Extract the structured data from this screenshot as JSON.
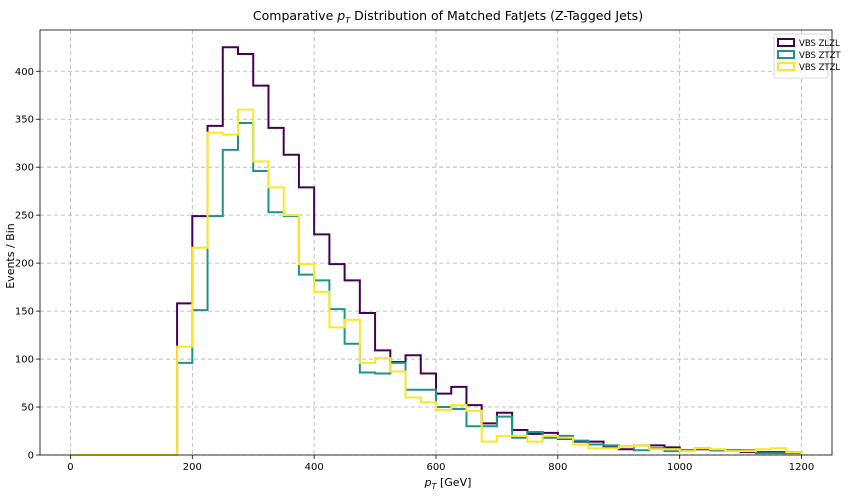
{
  "chart_data": {
    "type": "histogram",
    "title_prefix": "Comparative ",
    "title_var": "p",
    "title_sub": "T",
    "title_suffix": " Distribution of Matched FatJets (Z-Tagged Jets)",
    "xlabel_var": "p",
    "xlabel_sub": "T",
    "xlabel_suffix": " [GeV]",
    "ylabel": "Events / Bin",
    "xlim": [
      -50,
      1250
    ],
    "ylim": [
      0,
      443
    ],
    "xticks": [
      0,
      200,
      400,
      600,
      800,
      1000,
      1200
    ],
    "yticks": [
      0,
      50,
      100,
      150,
      200,
      250,
      300,
      350,
      400
    ],
    "grid": true,
    "legend_position": "top-right",
    "bin_edges": [
      0,
      25,
      50,
      75,
      100,
      125,
      150,
      175,
      200,
      225,
      250,
      275,
      300,
      325,
      350,
      375,
      400,
      425,
      450,
      475,
      500,
      525,
      550,
      575,
      600,
      625,
      650,
      675,
      700,
      725,
      750,
      775,
      800,
      825,
      850,
      875,
      900,
      925,
      950,
      975,
      1000,
      1025,
      1050,
      1075,
      1100,
      1125,
      1150,
      1175,
      1200
    ],
    "series": [
      {
        "name": "VBS ZLZL",
        "color": "#440154",
        "values": [
          0,
          0,
          0,
          0,
          0,
          0,
          0,
          158,
          249,
          343,
          425,
          418,
          385,
          341,
          313,
          279,
          230,
          199,
          182,
          148,
          109,
          97,
          104,
          85,
          64,
          71,
          52,
          33,
          44,
          26,
          22,
          23,
          17,
          14,
          14,
          8,
          6,
          10,
          10,
          8,
          5,
          6,
          5,
          5,
          3,
          3,
          3,
          3
        ]
      },
      {
        "name": "VBS ZTZT",
        "color": "#21918c",
        "values": [
          0,
          0,
          0,
          0,
          0,
          0,
          0,
          96,
          151,
          249,
          318,
          346,
          296,
          253,
          249,
          188,
          182,
          152,
          116,
          86,
          85,
          96,
          68,
          68,
          50,
          48,
          30,
          30,
          40,
          18,
          24,
          18,
          20,
          15,
          11,
          10,
          9,
          5,
          7,
          4,
          5,
          7,
          5,
          5,
          5,
          2,
          2,
          2
        ]
      },
      {
        "name": "VBS ZTZL",
        "color": "#fde725",
        "values": [
          0,
          0,
          0,
          0,
          0,
          0,
          0,
          113,
          216,
          336,
          334,
          360,
          306,
          279,
          250,
          199,
          170,
          133,
          141,
          96,
          101,
          87,
          60,
          55,
          47,
          52,
          46,
          14,
          20,
          20,
          14,
          20,
          18,
          11,
          7,
          7,
          9,
          10,
          6,
          6,
          4,
          7,
          6,
          4,
          4,
          6,
          7,
          3
        ]
      }
    ]
  }
}
